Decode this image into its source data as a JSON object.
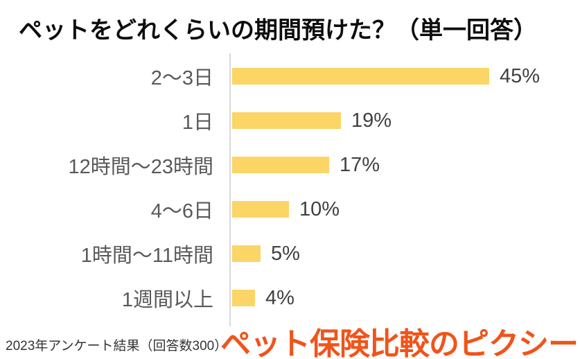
{
  "title": "ペットをどれくらいの期間預けた？（単一回答）",
  "footnote": "2023年アンケート結果（回答数300）",
  "logo": {
    "text": "ペット保険比較のピクシー",
    "color": "#f0541a"
  },
  "colors": {
    "bar": "#fbd566",
    "axis": "#d9d9d9",
    "category_label": "#595959",
    "value_label": "#404040",
    "title": "#0d0d0d"
  },
  "chart_data": {
    "type": "bar",
    "orientation": "horizontal",
    "title": "ペットをどれくらいの期間預けた？（単一回答）",
    "categories": [
      "2〜3日",
      "1日",
      "12時間〜23時間",
      "4〜6日",
      "1時間〜11時間",
      "1週間以上"
    ],
    "values": [
      45,
      19,
      17,
      10,
      5,
      4
    ],
    "value_labels": [
      "45%",
      "19%",
      "17%",
      "10%",
      "5%",
      "4%"
    ],
    "unit": "%",
    "xlim": [
      0,
      50
    ],
    "grid": false,
    "legend": false,
    "bar_order": "descending"
  }
}
